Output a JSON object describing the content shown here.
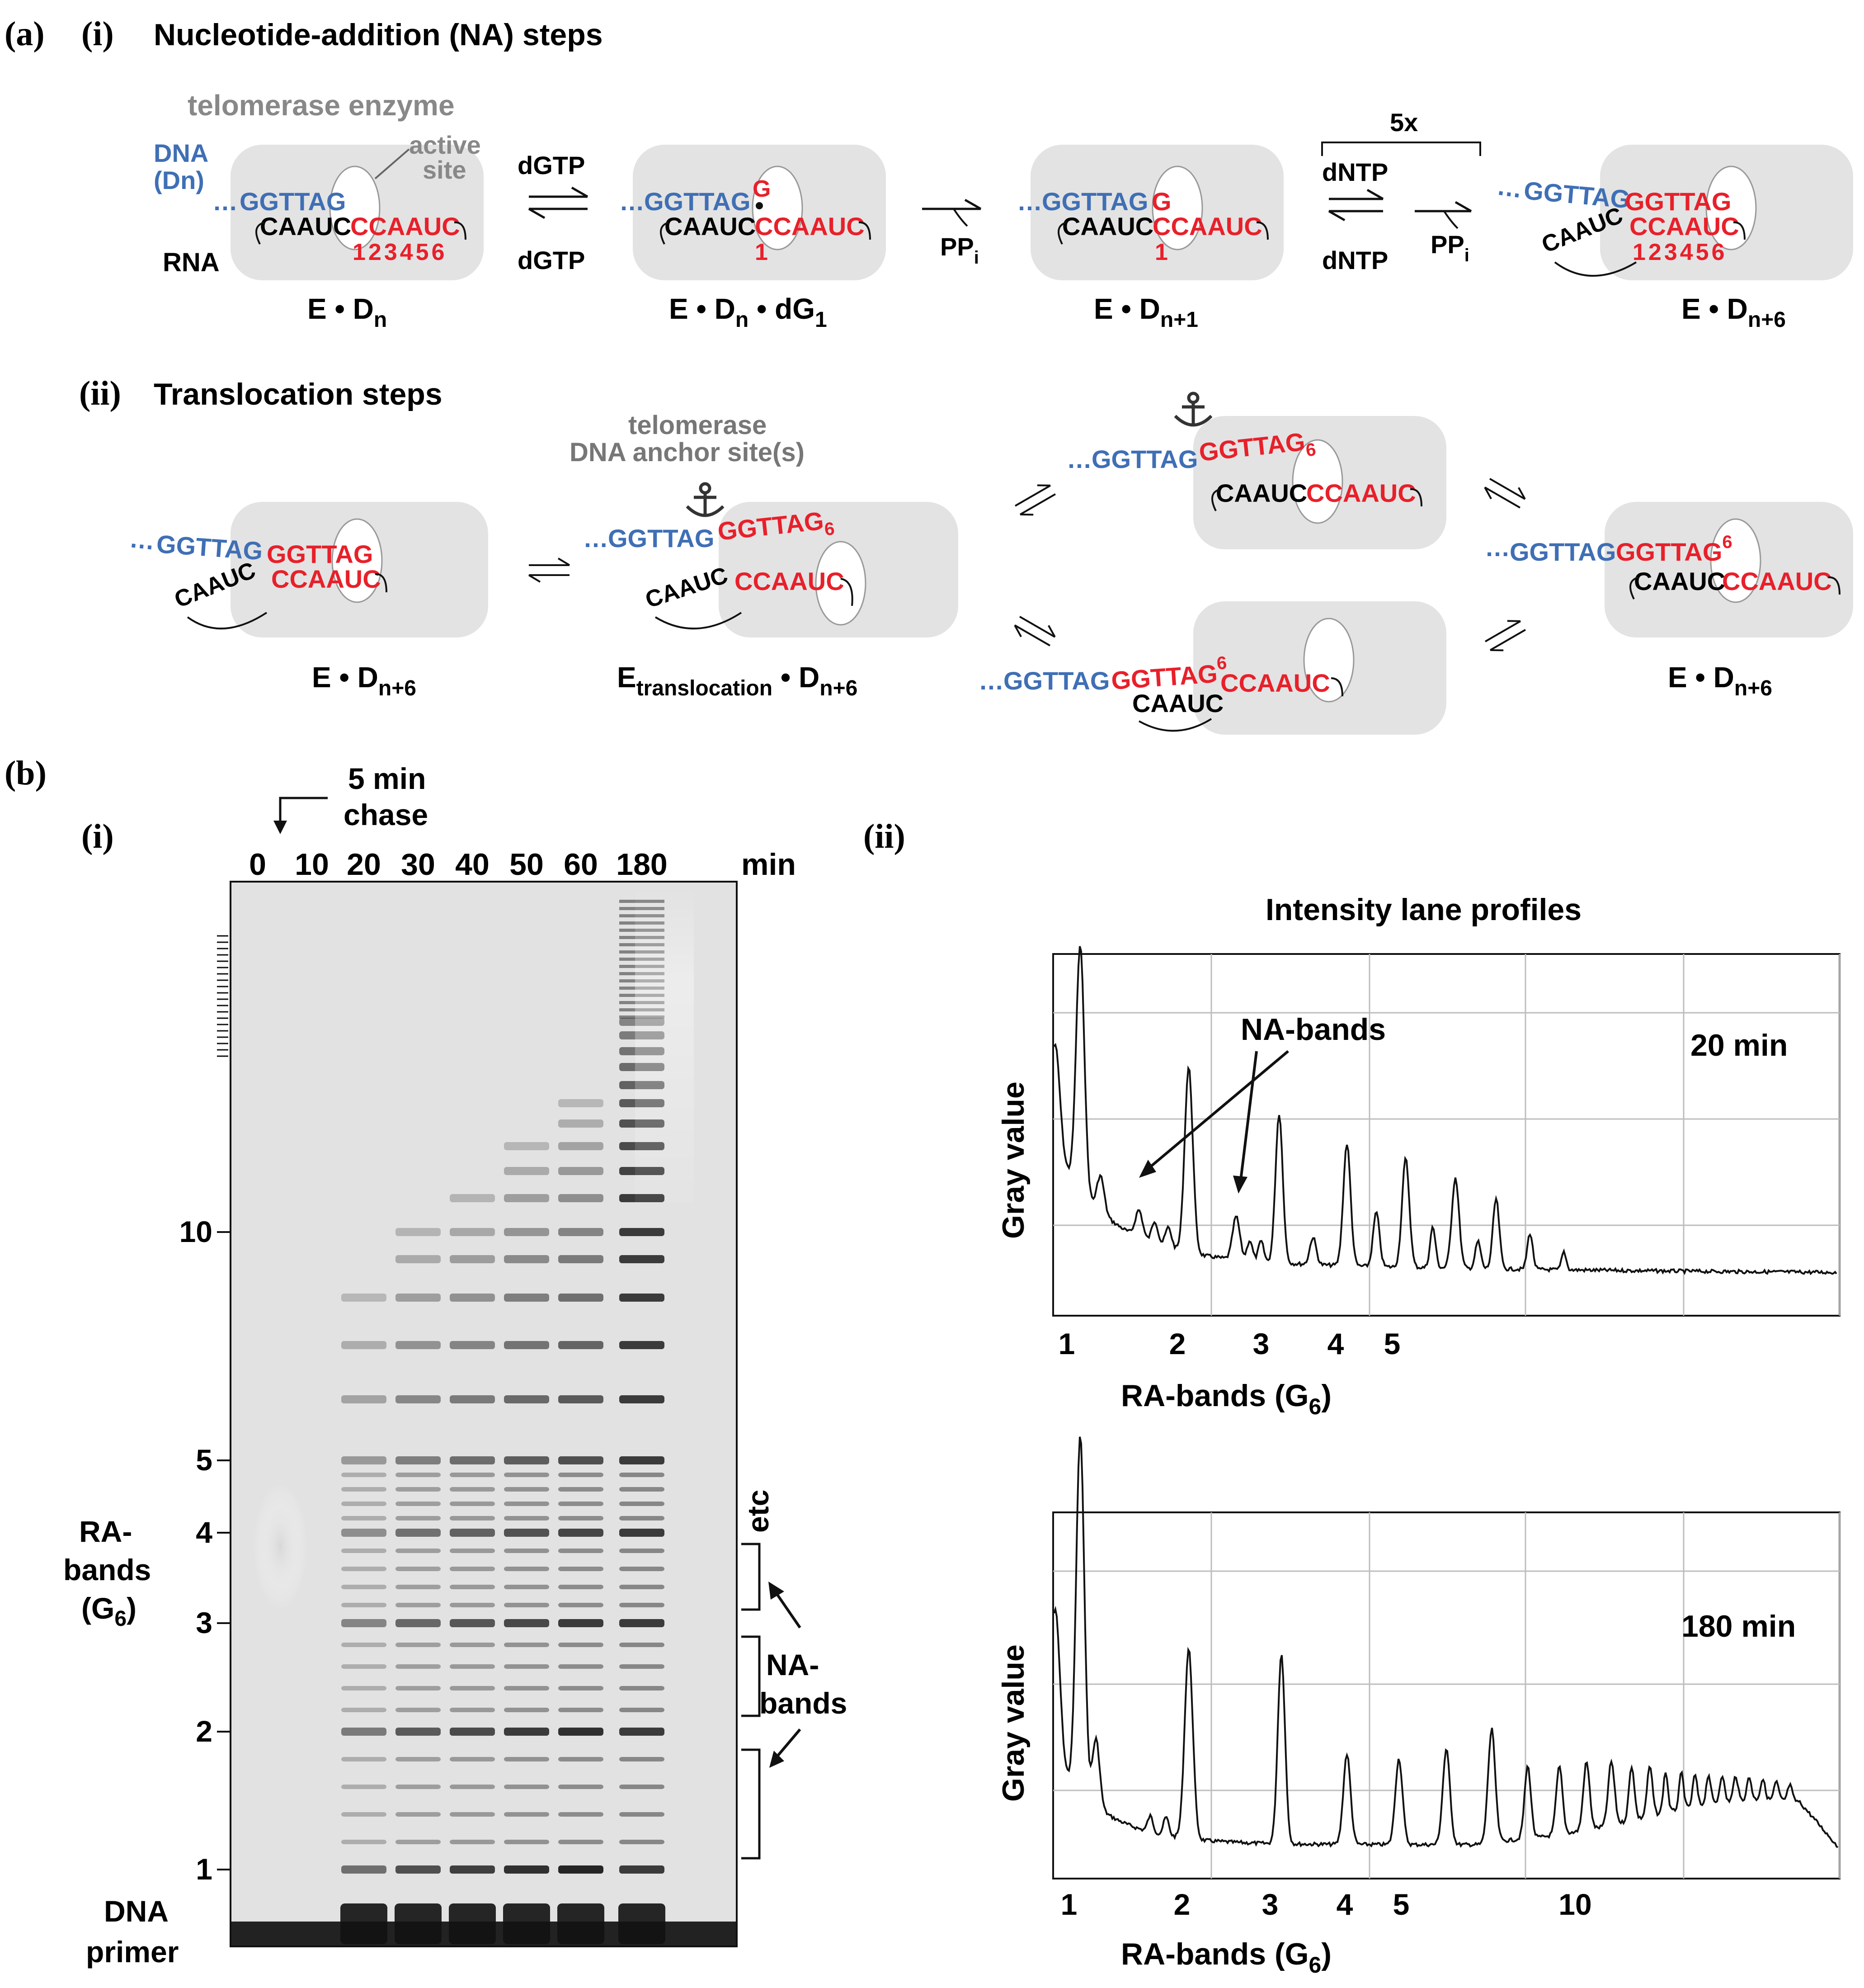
{
  "panel_a": {
    "label": "(a)",
    "part_i": {
      "numeral": "(i)",
      "title": "Nucleotide-addition (NA) steps",
      "telomerase_enzyme": "telomerase enzyme",
      "active_site_l1": "active",
      "active_site_l2": "site",
      "dna_l1": "DNA",
      "dna_l2": "(Dn)",
      "rna": "RNA",
      "dots": "…",
      "dna_seq": "GGTTAG",
      "rna_black": "CAAUC",
      "rna_red": "CCAAUC",
      "positions": "123456",
      "pos_1": "1",
      "added_g": "G",
      "hexamer": "GGTTAG",
      "dgtp_top": "dGTP",
      "dgtp_bottom": "dGTP",
      "ppi": "PP",
      "ppi_sub": "i",
      "repeat": "5x",
      "dntp_top": "dNTP",
      "dntp_bottom": "dNTP",
      "state1": "E • D",
      "state1_sub": "n",
      "state2": "E • D",
      "state2_sub": "n",
      "state2_tail": " • dG",
      "state2_tail_sub": "1",
      "state3": "E • D",
      "state3_sub": "n+1",
      "state4": "E • D",
      "state4_sub": "n+6"
    },
    "part_ii": {
      "numeral": "(ii)",
      "title": "Translocation steps",
      "anchor_l1": "telomerase",
      "anchor_l2": "DNA anchor site(s)",
      "hexamer_g6": "GGTTAG",
      "sub6": "6",
      "sup6": "6",
      "state_a": "E • D",
      "state_a_sub": "n+6",
      "state_b": "E",
      "state_b_sub": "translocation",
      "state_b_mid": " • D",
      "state_b_sub2": "n+6",
      "state_c": "E • D",
      "state_c_sub": "n+6"
    }
  },
  "panel_b": {
    "label": "(b)",
    "part_i": {
      "numeral": "(i)",
      "chase_l1": "5 min",
      "chase_l2": "chase",
      "lanes": [
        "0",
        "10",
        "20",
        "30",
        "40",
        "50",
        "60",
        "180"
      ],
      "unit": "min",
      "markers": [
        "10",
        "5",
        "4",
        "3",
        "2",
        "1"
      ],
      "ra_l1": "RA-",
      "ra_l2": "bands",
      "ra_l3": "(G",
      "ra_sub": "6",
      "ra_close": ")",
      "primer_l1": "DNA",
      "primer_l2": "primer",
      "etc": "etc",
      "na_l1": "NA-",
      "na_l2": "bands"
    },
    "part_ii": {
      "numeral": "(ii)",
      "title": "Intensity lane profiles",
      "ylabel": "Gray value",
      "xlabel": "RA-bands (G",
      "xlabel_sub": "6",
      "xlabel_close": ")",
      "na_annotation": "NA-bands",
      "top": {
        "time": "20 min",
        "ticks": [
          "1",
          "2",
          "3",
          "4",
          "5"
        ]
      },
      "bottom": {
        "time": "180 min",
        "ticks": [
          "1",
          "2",
          "3",
          "4",
          "5",
          "10"
        ]
      }
    }
  },
  "colors": {
    "dna_blue": "#3f6fb5",
    "rna_red": "#e8202a",
    "enzyme_gray": "#e3e3e3",
    "label_gray": "#888888"
  }
}
